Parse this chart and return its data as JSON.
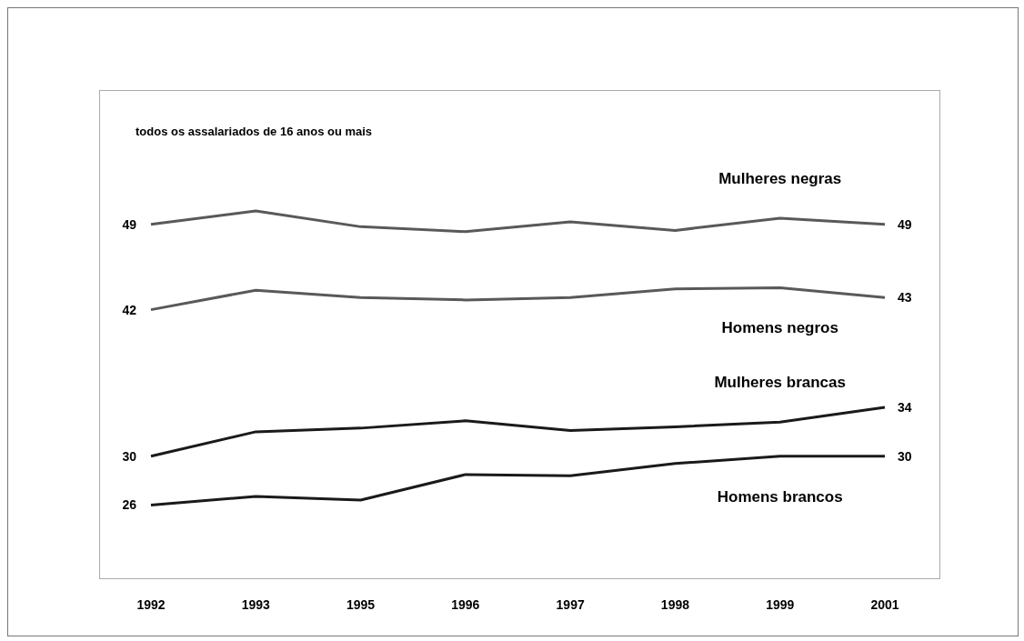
{
  "chart_data": {
    "type": "line",
    "subtitle": "todos os assalariados de 16 anos ou mais",
    "categories": [
      "1992",
      "1993",
      "1995",
      "1996",
      "1997",
      "1998",
      "1999",
      "2001"
    ],
    "ylim": [
      20,
      60
    ],
    "series": [
      {
        "name": "Mulheres negras",
        "color": "#595959",
        "values": [
          49,
          50.1,
          48.8,
          48.4,
          49.2,
          48.5,
          49.5,
          49
        ],
        "value_labels": [
          "49",
          null,
          null,
          null,
          null,
          null,
          null,
          "49"
        ]
      },
      {
        "name": "Homens negros",
        "color": "#595959",
        "values": [
          42,
          43.6,
          43.0,
          42.8,
          43.0,
          43.7,
          43.8,
          43
        ],
        "value_labels": [
          "42",
          null,
          null,
          null,
          null,
          null,
          null,
          "43"
        ]
      },
      {
        "name": "Mulheres brancas",
        "color": "#1a1a1a",
        "values": [
          30,
          32,
          32.3,
          32.9,
          32.1,
          32.4,
          32.8,
          34
        ],
        "value_labels": [
          "30",
          null,
          null,
          null,
          null,
          null,
          null,
          "34"
        ]
      },
      {
        "name": "Homens brancos",
        "color": "#1a1a1a",
        "values": [
          26,
          26.7,
          26.4,
          28.5,
          28.4,
          29.4,
          30,
          30
        ],
        "value_labels": [
          "26",
          null,
          null,
          null,
          null,
          null,
          null,
          "30"
        ]
      }
    ],
    "grid": false,
    "legend": false
  }
}
